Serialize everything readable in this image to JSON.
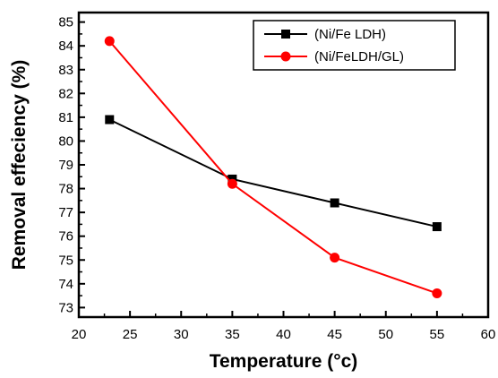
{
  "chart_data": {
    "type": "line",
    "xlabel": "Temperature (°c)",
    "ylabel": "Removal effeciency (%)",
    "xlim": [
      20,
      60
    ],
    "ylim": [
      72.6,
      85.4
    ],
    "x_ticks": [
      20,
      25,
      30,
      35,
      40,
      45,
      50,
      55,
      60
    ],
    "y_ticks": [
      73,
      74,
      75,
      76,
      77,
      78,
      79,
      80,
      81,
      82,
      83,
      84,
      85
    ],
    "grid": false,
    "legend_position": "top-right",
    "series": [
      {
        "name": "(Ni/Fe LDH)",
        "color": "#000000",
        "marker": "square",
        "x": [
          23,
          35,
          45,
          55
        ],
        "y": [
          80.9,
          78.4,
          77.4,
          76.4
        ]
      },
      {
        "name": "(Ni/FeLDH/GL)",
        "color": "#ff0000",
        "marker": "circle",
        "x": [
          23,
          35,
          45,
          55
        ],
        "y": [
          84.2,
          78.2,
          75.1,
          73.6
        ]
      }
    ]
  }
}
